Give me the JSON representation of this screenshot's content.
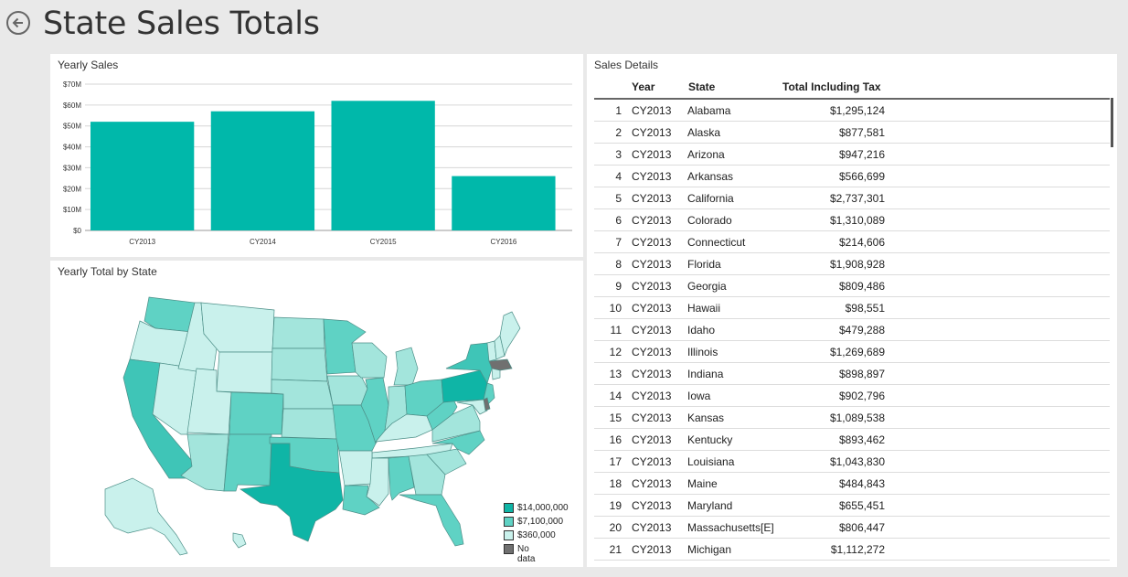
{
  "page": {
    "title": "State Sales Totals"
  },
  "colors": {
    "bar": "#00b8aa",
    "legend_14m": "#0fb5a6",
    "legend_7m": "#5fd2c4",
    "legend_360k": "#c9f1ec",
    "legend_nodata": "#707070"
  },
  "yearly_sales": {
    "title": "Yearly Sales",
    "chart_data": {
      "type": "bar",
      "categories": [
        "CY2013",
        "CY2014",
        "CY2015",
        "CY2016"
      ],
      "values": [
        52,
        57,
        62,
        26
      ],
      "ylim": [
        0,
        70
      ],
      "ytick_labels": [
        "$0",
        "$10M",
        "$20M",
        "$30M",
        "$40M",
        "$50M",
        "$60M",
        "$70M"
      ],
      "grid": true
    }
  },
  "map": {
    "title": "Yearly Total by State",
    "legend": [
      {
        "label": "$14,000,000",
        "color": "#0fb5a6"
      },
      {
        "label": "$7,100,000",
        "color": "#5fd2c4"
      },
      {
        "label": "$360,000",
        "color": "#c9f1ec"
      },
      {
        "label": "No data",
        "color": "#707070"
      }
    ]
  },
  "details": {
    "title": "Sales Details",
    "columns": {
      "year": "Year",
      "state": "State",
      "total": "Total Including Tax"
    },
    "rows": [
      {
        "idx": "1",
        "year": "CY2013",
        "state": "Alabama",
        "total": "$1,295,124"
      },
      {
        "idx": "2",
        "year": "CY2013",
        "state": "Alaska",
        "total": "$877,581"
      },
      {
        "idx": "3",
        "year": "CY2013",
        "state": "Arizona",
        "total": "$947,216"
      },
      {
        "idx": "4",
        "year": "CY2013",
        "state": "Arkansas",
        "total": "$566,699"
      },
      {
        "idx": "5",
        "year": "CY2013",
        "state": "California",
        "total": "$2,737,301"
      },
      {
        "idx": "6",
        "year": "CY2013",
        "state": "Colorado",
        "total": "$1,310,089"
      },
      {
        "idx": "7",
        "year": "CY2013",
        "state": "Connecticut",
        "total": "$214,606"
      },
      {
        "idx": "8",
        "year": "CY2013",
        "state": "Florida",
        "total": "$1,908,928"
      },
      {
        "idx": "9",
        "year": "CY2013",
        "state": "Georgia",
        "total": "$809,486"
      },
      {
        "idx": "10",
        "year": "CY2013",
        "state": "Hawaii",
        "total": "$98,551"
      },
      {
        "idx": "11",
        "year": "CY2013",
        "state": "Idaho",
        "total": "$479,288"
      },
      {
        "idx": "12",
        "year": "CY2013",
        "state": "Illinois",
        "total": "$1,269,689"
      },
      {
        "idx": "13",
        "year": "CY2013",
        "state": "Indiana",
        "total": "$898,897"
      },
      {
        "idx": "14",
        "year": "CY2013",
        "state": "Iowa",
        "total": "$902,796"
      },
      {
        "idx": "15",
        "year": "CY2013",
        "state": "Kansas",
        "total": "$1,089,538"
      },
      {
        "idx": "16",
        "year": "CY2013",
        "state": "Kentucky",
        "total": "$893,462"
      },
      {
        "idx": "17",
        "year": "CY2013",
        "state": "Louisiana",
        "total": "$1,043,830"
      },
      {
        "idx": "18",
        "year": "CY2013",
        "state": "Maine",
        "total": "$484,843"
      },
      {
        "idx": "19",
        "year": "CY2013",
        "state": "Maryland",
        "total": "$655,451"
      },
      {
        "idx": "20",
        "year": "CY2013",
        "state": "Massachusetts[E]",
        "total": "$806,447"
      },
      {
        "idx": "21",
        "year": "CY2013",
        "state": "Michigan",
        "total": "$1,112,272"
      }
    ]
  }
}
